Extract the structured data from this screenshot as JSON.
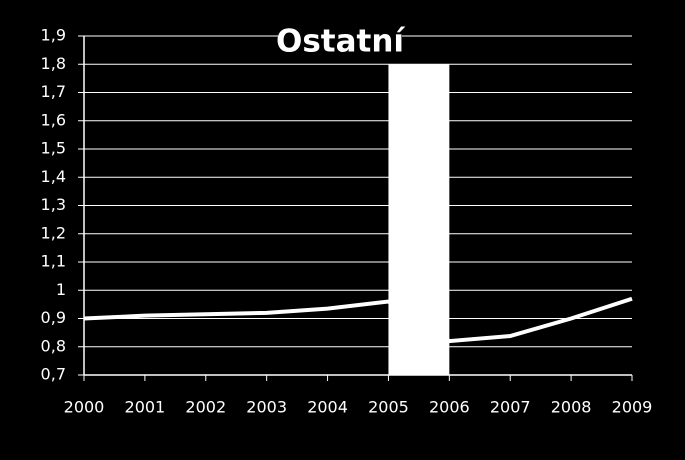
{
  "chart_data": {
    "type": "line",
    "title": "Ostatní",
    "x": [
      2000,
      2001,
      2002,
      2003,
      2004,
      2005,
      2006,
      2007,
      2008,
      2009
    ],
    "values": [
      0.9,
      0.91,
      0.915,
      0.92,
      0.935,
      0.96,
      0.82,
      0.838,
      0.9,
      0.97
    ],
    "color": "#ffffff",
    "xlim": [
      2000,
      2009
    ],
    "xticks": [
      2000,
      2001,
      2002,
      2003,
      2004,
      2005,
      2006,
      2007,
      2008,
      2009
    ],
    "ylim": [
      0.7,
      1.9
    ],
    "yticks": [
      {
        "value": 0.7,
        "label": "0,7"
      },
      {
        "value": 0.8,
        "label": "0,8"
      },
      {
        "value": 0.9,
        "label": "0,9"
      },
      1,
      {
        "value": 1.1,
        "label": "1,1"
      },
      {
        "value": 1.2,
        "label": "1,2"
      },
      {
        "value": 1.3,
        "label": "1,3"
      },
      {
        "value": 1.4,
        "label": "1,4"
      },
      {
        "value": 1.5,
        "label": "1,5"
      },
      {
        "value": 1.6,
        "label": "1,6"
      },
      {
        "value": 1.7,
        "label": "1,7"
      },
      {
        "value": 1.8,
        "label": "1,8"
      },
      {
        "value": 1.9,
        "label": "1,9"
      }
    ],
    "grid": true,
    "highlight": {
      "x": [
        2005,
        2006
      ],
      "y": [
        0.7,
        1.8
      ],
      "color": "#ffffff"
    }
  }
}
